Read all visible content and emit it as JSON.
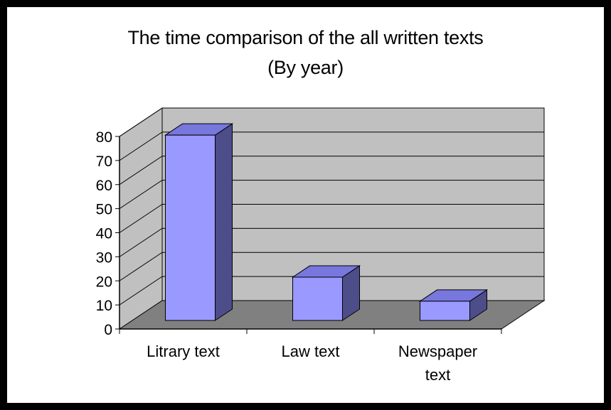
{
  "chart_data": {
    "type": "bar",
    "title": [
      "The time comparison of the all written texts",
      "(By year)"
    ],
    "categories": [
      [
        "Litrary text"
      ],
      [
        "Law text"
      ],
      [
        "Newspaper",
        "text"
      ]
    ],
    "values": [
      77,
      18,
      8
    ],
    "ylim": [
      0,
      80
    ],
    "yticks": [
      0,
      10,
      20,
      30,
      40,
      50,
      60,
      70,
      80
    ],
    "grid": true,
    "three_d": true,
    "colors": {
      "bar_front": "#9999ff",
      "bar_top": "#7777dd",
      "bar_side": "#4d4d8a",
      "back_wall": "#c0c0c0",
      "side_wall": "#c0c0c0",
      "floor": "#808080"
    }
  }
}
